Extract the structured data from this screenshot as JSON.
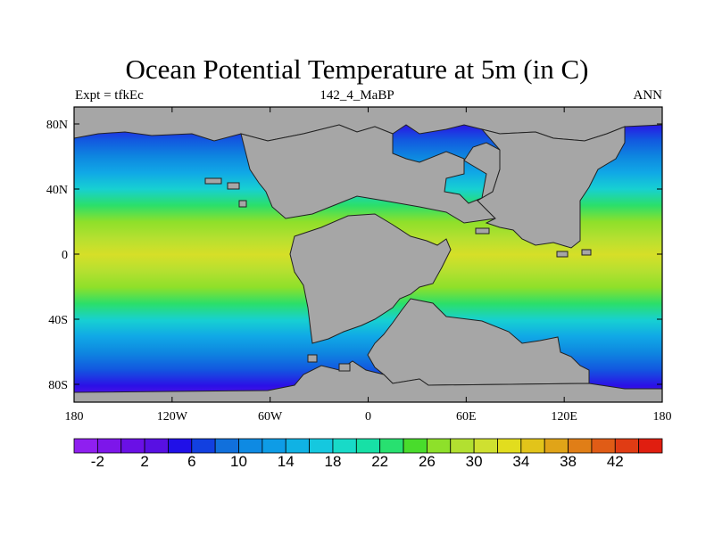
{
  "title": "Ocean Potential Temperature at 5m (in C)",
  "left_subtitle": "Expt = tfkEc",
  "center_subtitle": "142_4_MaBP",
  "right_subtitle": "ANN",
  "lon_labels": [
    "180",
    "120W",
    "60W",
    "0",
    "60E",
    "120E",
    "180"
  ],
  "lat_labels": [
    "80N",
    "40N",
    "0",
    "40S",
    "80S"
  ],
  "colorbar": {
    "colors": [
      "#8f1ff0",
      "#7d16ea",
      "#6a10e6",
      "#5810e3",
      "#2010e8",
      "#1240e0",
      "#1170dc",
      "#0e8ae3",
      "#0e9ce6",
      "#10b2e4",
      "#15c8df",
      "#18dac8",
      "#17e0a6",
      "#28e070",
      "#49dc2c",
      "#8ee02a",
      "#b2e030",
      "#cfe030",
      "#e2dd1e",
      "#e2c41a",
      "#e0a418",
      "#e07e17",
      "#e05c16",
      "#e03c14",
      "#e01e10"
    ],
    "labels": [
      "-2",
      "2",
      "6",
      "10",
      "14",
      "18",
      "22",
      "26",
      "30",
      "34",
      "38",
      "42"
    ]
  },
  "palette": {
    "land": "#a6a6a6",
    "ocean_gradient": [
      "#6e12e6",
      "#2b10e6",
      "#1258e0",
      "#0e86e0",
      "#10a8e6",
      "#17d0d2",
      "#2bdf6a",
      "#8ee02a",
      "#b5e030",
      "#d6df28"
    ]
  }
}
